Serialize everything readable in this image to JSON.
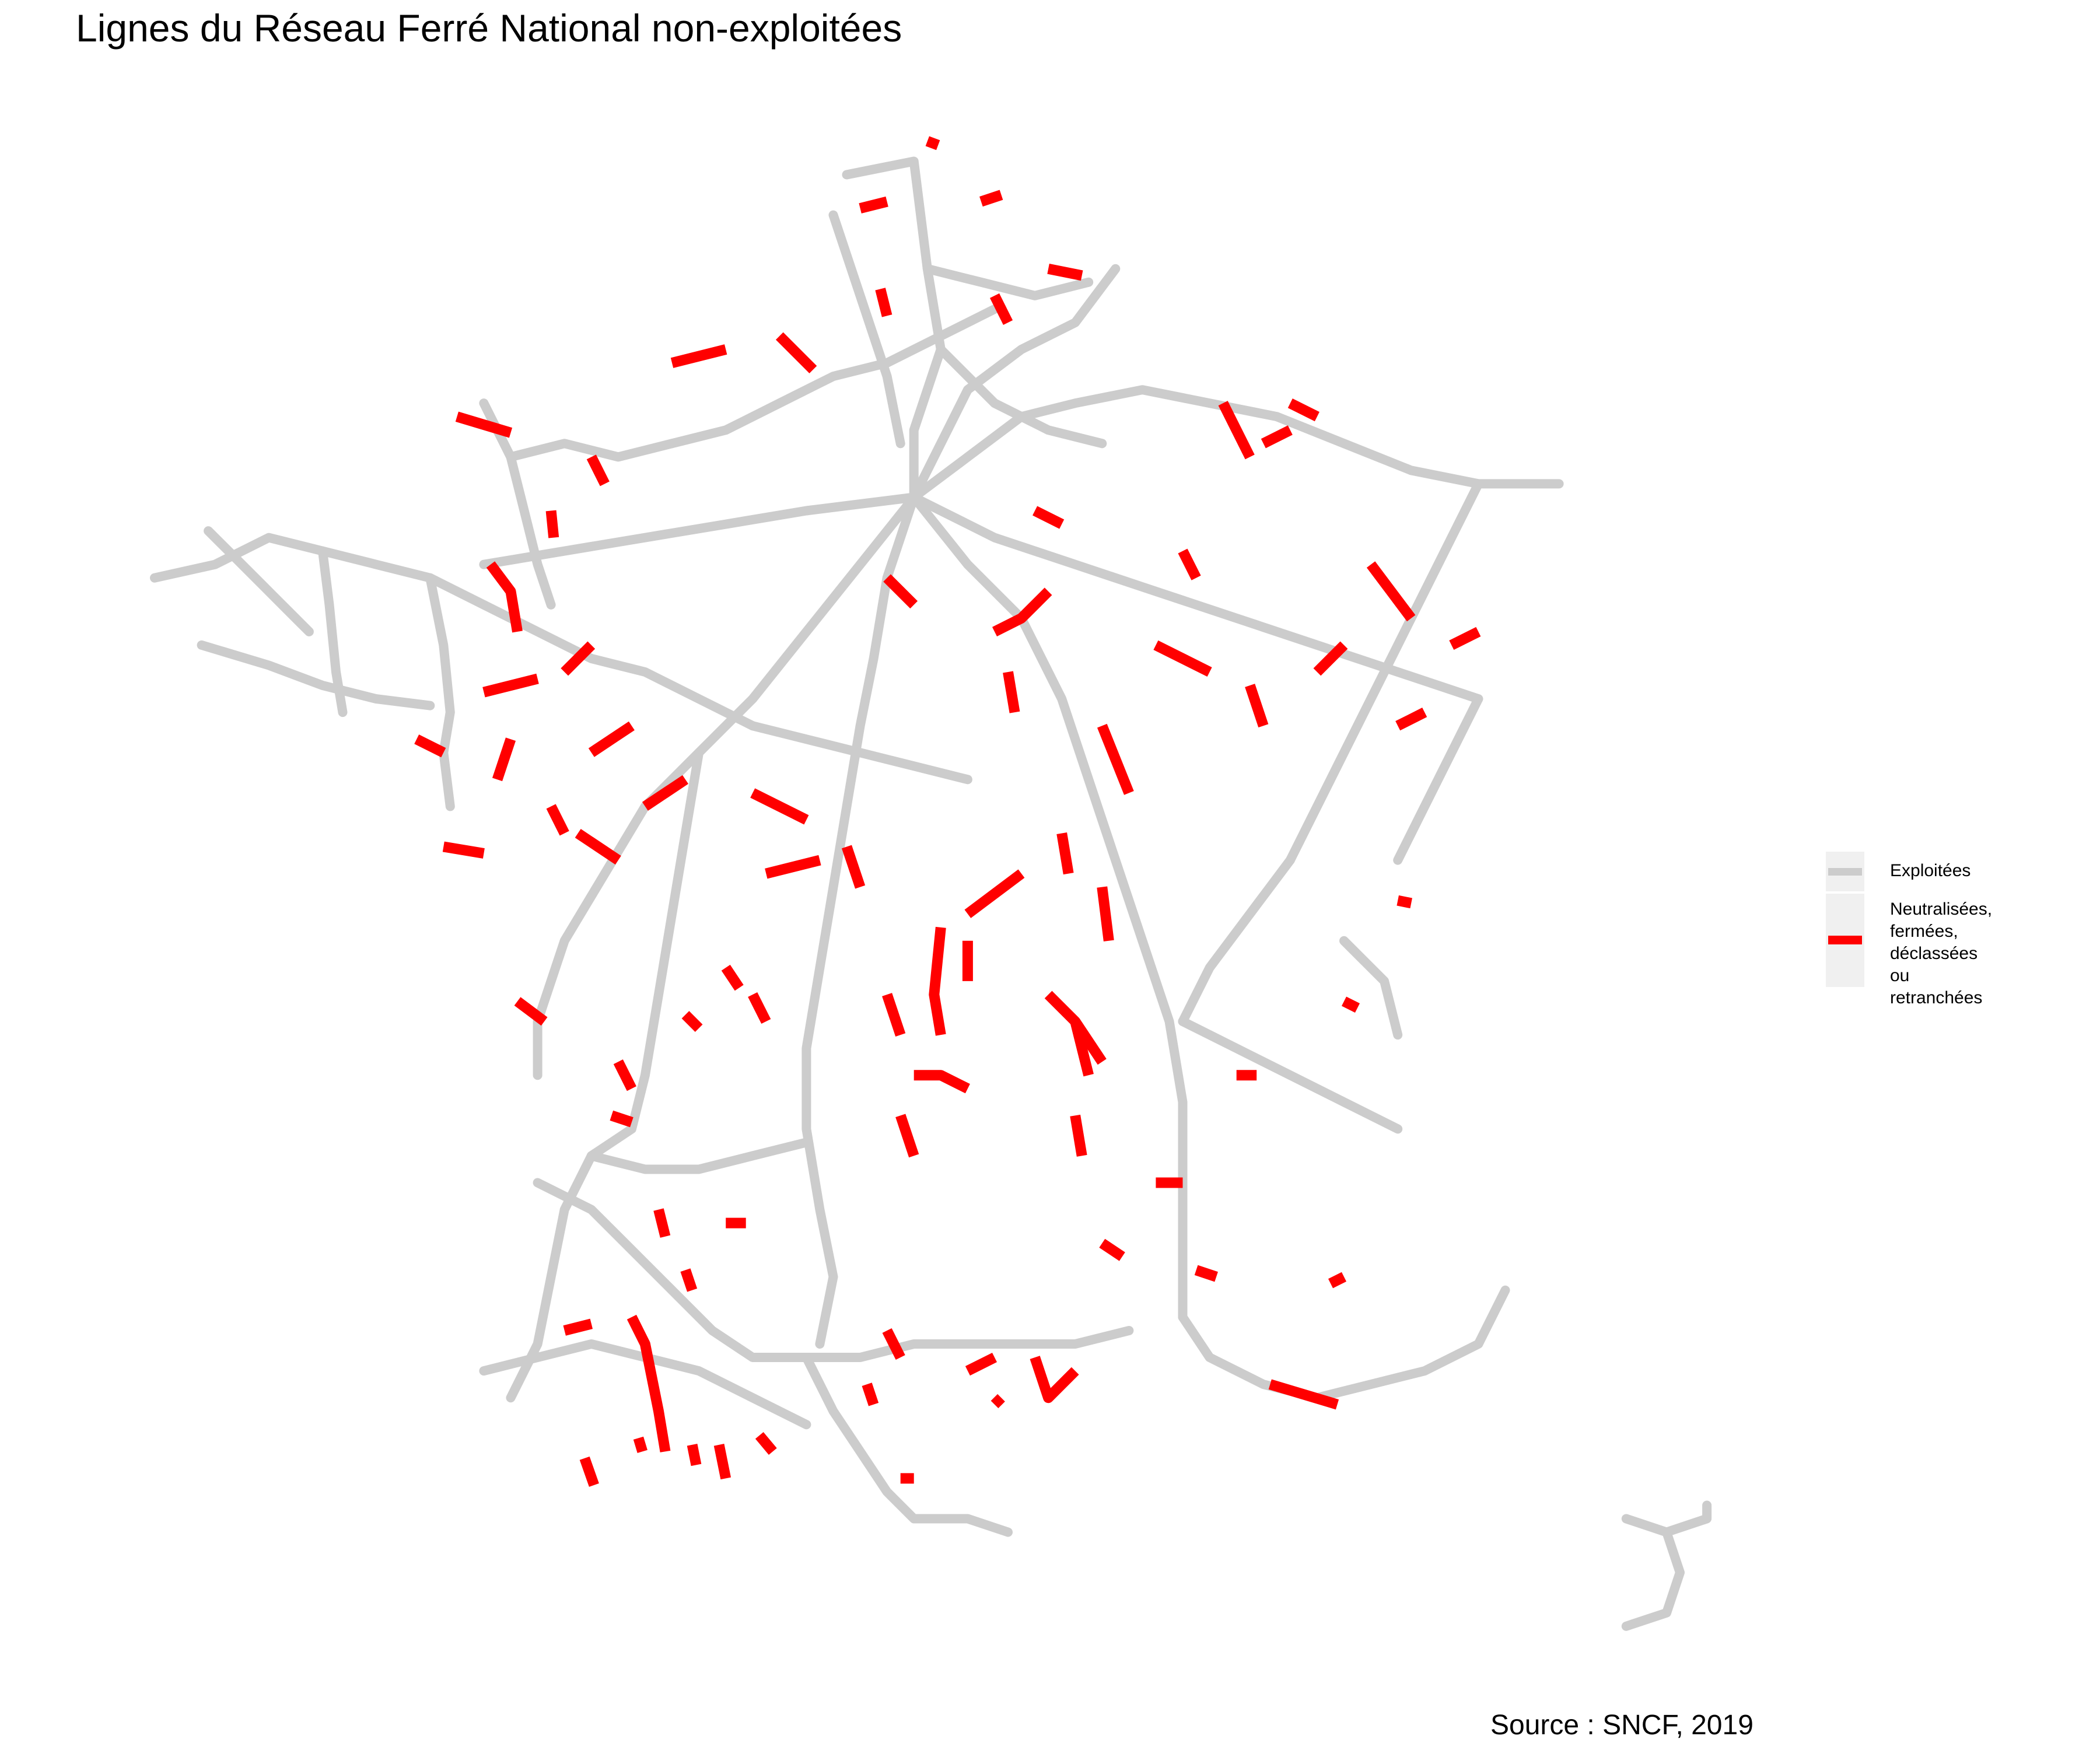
{
  "title": "Lignes du Réseau Ferré National non-exploitées",
  "source": "Source : SNCF, 2019",
  "colors": {
    "exploited": "#cccccc",
    "unexploited": "#ff0000",
    "legend_key_bg": "#f0f0f0"
  },
  "legend": {
    "items": [
      {
        "label": "Exploitées",
        "color": "#cccccc"
      },
      {
        "label_lines": [
          "Neutralisées,",
          "fermées,",
          "déclassées ou",
          "retranchées"
        ],
        "color": "#ff0000"
      }
    ]
  }
}
